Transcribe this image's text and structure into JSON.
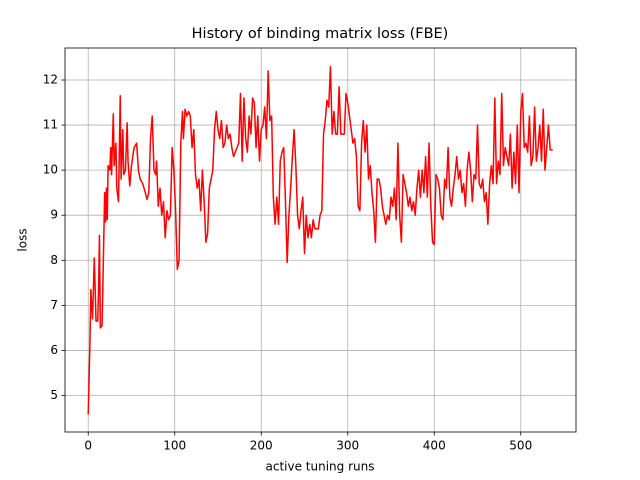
{
  "chart_data": {
    "type": "line",
    "title": "History of binding matrix loss (FBE)",
    "xlabel": "active tuning runs",
    "ylabel": "loss",
    "x": [
      0,
      2,
      3,
      5,
      7,
      8,
      9,
      11,
      12,
      13,
      14,
      16,
      17,
      19,
      20,
      21,
      22,
      23,
      25,
      26,
      27,
      29,
      30,
      32,
      33,
      35,
      37,
      38,
      40,
      41,
      43,
      45,
      46,
      48,
      50,
      53,
      56,
      58,
      60,
      63,
      66,
      68,
      70,
      72,
      74,
      76,
      78,
      79,
      81,
      83,
      85,
      87,
      89,
      91,
      93,
      95,
      97,
      99,
      101,
      103,
      105,
      107,
      109,
      110,
      112,
      114,
      116,
      118,
      120,
      122,
      124,
      126,
      128,
      130,
      132,
      134,
      136,
      138,
      140,
      142,
      144,
      146,
      148,
      150,
      152,
      154,
      156,
      158,
      160,
      162,
      164,
      166,
      168,
      170,
      172,
      174,
      176,
      178,
      180,
      182,
      184,
      186,
      188,
      190,
      192,
      194,
      196,
      198,
      200,
      202,
      204,
      206,
      208,
      210,
      212,
      214,
      216,
      218,
      220,
      222,
      224,
      226,
      228,
      230,
      232,
      234,
      236,
      238,
      240,
      242,
      244,
      246,
      248,
      250,
      252,
      254,
      256,
      258,
      260,
      262,
      264,
      266,
      268,
      270,
      272,
      274,
      276,
      278,
      280,
      282,
      284,
      286,
      288,
      290,
      292,
      294,
      296,
      298,
      300,
      302,
      304,
      306,
      308,
      310,
      312,
      314,
      316,
      318,
      320,
      322,
      324,
      326,
      328,
      330,
      332,
      334,
      336,
      338,
      340,
      342,
      344,
      346,
      348,
      350,
      352,
      354,
      356,
      358,
      360,
      362,
      364,
      366,
      368,
      370,
      372,
      374,
      376,
      378,
      380,
      382,
      384,
      386,
      388,
      390,
      392,
      394,
      396,
      398,
      400,
      402,
      404,
      406,
      408,
      410,
      412,
      414,
      416,
      418,
      420,
      422,
      424,
      426,
      428,
      430,
      432,
      434,
      436,
      438,
      440,
      442,
      444,
      446,
      448,
      450,
      452,
      454,
      456,
      458,
      460,
      462,
      464,
      466,
      468,
      470,
      472,
      474,
      476,
      478,
      480,
      482,
      484,
      486,
      488,
      490,
      492,
      494,
      496,
      498,
      500,
      502,
      504,
      506,
      508,
      510,
      512,
      514,
      516,
      518,
      520,
      522,
      524,
      526,
      528,
      530,
      532,
      534,
      537
    ],
    "values": [
      4.58,
      6.2,
      7.35,
      6.7,
      8.05,
      7.4,
      6.65,
      6.65,
      7.4,
      8.55,
      6.5,
      6.55,
      7.5,
      9.5,
      8.85,
      9.6,
      8.9,
      10.1,
      10.0,
      10.5,
      9.9,
      11.25,
      10.1,
      10.6,
      9.6,
      9.3,
      11.65,
      9.8,
      10.9,
      9.9,
      10.0,
      11.05,
      10.2,
      9.65,
      10.1,
      10.5,
      10.6,
      10.0,
      9.8,
      9.7,
      9.5,
      9.35,
      9.5,
      10.7,
      11.2,
      10.0,
      9.9,
      10.2,
      9.2,
      9.6,
      9.0,
      9.3,
      8.5,
      9.1,
      8.9,
      9.0,
      10.5,
      10.0,
      9.1,
      7.8,
      8.0,
      10.6,
      11.3,
      10.7,
      11.35,
      11.2,
      11.3,
      11.2,
      10.5,
      10.9,
      9.9,
      9.6,
      9.8,
      9.1,
      10.0,
      9.3,
      8.4,
      8.6,
      9.6,
      9.8,
      10.0,
      10.9,
      11.3,
      10.9,
      10.7,
      11.1,
      10.5,
      10.6,
      11.0,
      10.7,
      10.8,
      10.5,
      10.3,
      10.4,
      10.5,
      10.6,
      11.7,
      10.2,
      11.6,
      10.7,
      10.4,
      11.2,
      10.8,
      11.6,
      11.5,
      10.5,
      11.2,
      10.2,
      10.9,
      11.0,
      11.4,
      10.7,
      12.2,
      11.1,
      11.2,
      9.4,
      8.8,
      9.4,
      8.8,
      10.2,
      10.4,
      10.5,
      9.3,
      7.95,
      9.0,
      9.6,
      10.3,
      10.9,
      10.1,
      9.0,
      8.7,
      9.1,
      9.4,
      8.15,
      9.0,
      8.5,
      8.8,
      8.5,
      8.9,
      8.7,
      8.7,
      8.7,
      9.0,
      9.1,
      10.8,
      11.1,
      11.55,
      11.4,
      12.3,
      10.8,
      11.3,
      10.8,
      10.8,
      11.85,
      10.8,
      10.8,
      10.8,
      11.7,
      11.5,
      11.2,
      10.9,
      10.6,
      10.7,
      10.3,
      9.2,
      9.1,
      10.6,
      11.1,
      10.4,
      11.0,
      9.8,
      10.1,
      9.5,
      9.1,
      8.4,
      9.8,
      9.8,
      9.6,
      9.2,
      9.0,
      8.8,
      9.0,
      8.9,
      9.4,
      9.2,
      9.6,
      8.9,
      10.6,
      9.0,
      8.4,
      9.9,
      9.7,
      9.5,
      9.2,
      9.4,
      9.1,
      9.3,
      9.0,
      9.6,
      10.0,
      9.4,
      10.0,
      9.5,
      10.3,
      9.4,
      10.6,
      9.2,
      8.4,
      8.35,
      9.9,
      9.8,
      9.6,
      9.0,
      8.9,
      9.8,
      9.6,
      10.5,
      9.4,
      9.2,
      9.6,
      9.9,
      10.3,
      9.8,
      10.0,
      9.5,
      9.7,
      9.2,
      10.0,
      10.4,
      10.0,
      9.3,
      9.9,
      9.8,
      11.0,
      9.7,
      9.6,
      9.8,
      9.3,
      9.5,
      8.8,
      9.7,
      10.1,
      9.7,
      11.6,
      9.7,
      10.2,
      9.9,
      11.7,
      10.1,
      10.5,
      10.3,
      10.1,
      10.8,
      9.6,
      10.4,
      9.7,
      11.0,
      9.5,
      11.3,
      11.7,
      10.5,
      10.6,
      10.4,
      11.2,
      10.1,
      10.3,
      11.4,
      10.2,
      10.5,
      11.0,
      10.2,
      11.35,
      10.0,
      10.5,
      11.0,
      10.45,
      10.45
    ],
    "color": "#ff0000",
    "xlim": [
      -26.85,
      563.85
    ],
    "ylim": [
      4.19,
      12.71
    ],
    "xticks": [
      0,
      100,
      200,
      300,
      400,
      500
    ],
    "yticks": [
      5,
      6,
      7,
      8,
      9,
      10,
      11,
      12
    ],
    "grid": true
  }
}
